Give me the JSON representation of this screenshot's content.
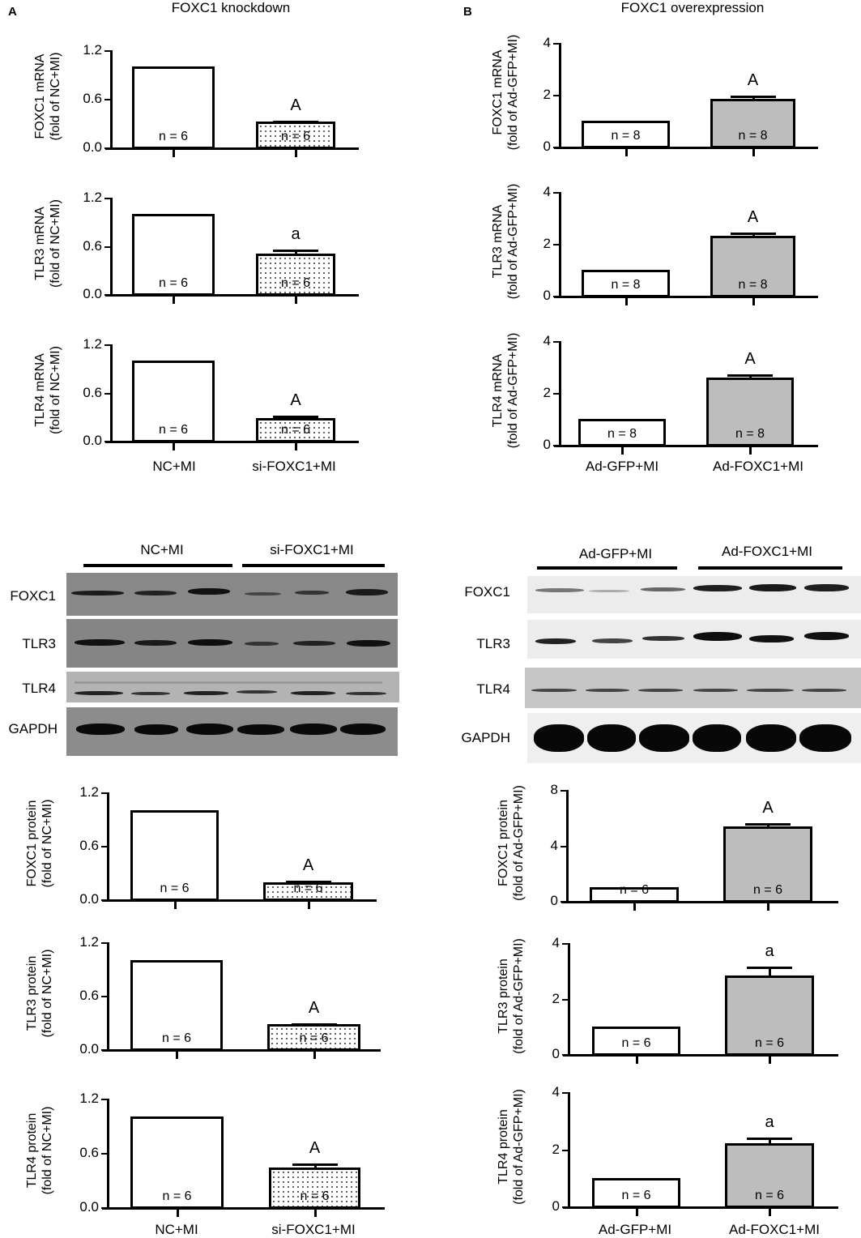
{
  "panels": {
    "A": {
      "letter": "A",
      "title": "FOXC1 knockdown",
      "categories": [
        "NC+MI",
        "si-FOXC1+MI"
      ]
    },
    "B": {
      "letter": "B",
      "title": "FOXC1 overexpression",
      "categories": [
        "Ad-GFP+MI",
        "Ad-FOXC1+MI"
      ]
    }
  },
  "blots": {
    "left": {
      "groups": [
        "NC+MI",
        "si-FOXC1+MI"
      ],
      "rows": [
        "FOXC1",
        "TLR3",
        "TLR4",
        "GAPDH"
      ]
    },
    "right": {
      "groups": [
        "Ad-GFP+MI",
        "Ad-FOXC1+MI"
      ],
      "rows": [
        "FOXC1",
        "TLR3",
        "TLR4",
        "GAPDH"
      ]
    }
  },
  "chart_data": [
    {
      "id": "A1",
      "type": "bar",
      "ylabel": "FOXC1 mRNA",
      "ylabel2": "(fold of NC+MI)",
      "yticks": [
        "0.0",
        "0.6",
        "1.2"
      ],
      "ylim": [
        0,
        1.2
      ],
      "categories": [
        "NC+MI",
        "si-FOXC1+MI"
      ],
      "values": [
        1.0,
        0.32
      ],
      "errors": [
        0,
        0.01
      ],
      "n": [
        "n = 6",
        "n = 6"
      ],
      "sig": [
        "",
        "A"
      ],
      "fills": [
        "white",
        "dotted"
      ]
    },
    {
      "id": "A2",
      "type": "bar",
      "ylabel": "TLR3 mRNA",
      "ylabel2": "(fold of NC+MI)",
      "yticks": [
        "0.0",
        "0.6",
        "1.2"
      ],
      "ylim": [
        0,
        1.2
      ],
      "categories": [
        "NC+MI",
        "si-FOXC1+MI"
      ],
      "values": [
        1.0,
        0.5
      ],
      "errors": [
        0,
        0.05
      ],
      "n": [
        "n = 6",
        "n = 6"
      ],
      "sig": [
        "",
        "a"
      ],
      "fills": [
        "white",
        "dotted"
      ]
    },
    {
      "id": "A3",
      "type": "bar",
      "ylabel": "TLR4 mRNA",
      "ylabel2": "(fold of NC+MI)",
      "yticks": [
        "0.0",
        "0.6",
        "1.2"
      ],
      "ylim": [
        0,
        1.2
      ],
      "categories": [
        "NC+MI",
        "si-FOXC1+MI"
      ],
      "values": [
        1.0,
        0.28
      ],
      "errors": [
        0,
        0.03
      ],
      "n": [
        "n = 6",
        "n = 6"
      ],
      "sig": [
        "",
        "A"
      ],
      "fills": [
        "white",
        "dotted"
      ]
    },
    {
      "id": "B1",
      "type": "bar",
      "ylabel": "FOXC1 mRNA",
      "ylabel2": "(fold of Ad-GFP+MI)",
      "yticks": [
        "0",
        "2",
        "4"
      ],
      "ylim": [
        0,
        4
      ],
      "categories": [
        "Ad-GFP+MI",
        "Ad-FOXC1+MI"
      ],
      "values": [
        1.0,
        1.83
      ],
      "errors": [
        0,
        0.15
      ],
      "n": [
        "n = 8",
        "n = 8"
      ],
      "sig": [
        "",
        "A"
      ],
      "fills": [
        "white",
        "gray"
      ]
    },
    {
      "id": "B2",
      "type": "bar",
      "ylabel": "TLR3 mRNA",
      "ylabel2": "(fold of Ad-GFP+MI)",
      "yticks": [
        "0",
        "2",
        "4"
      ],
      "ylim": [
        0,
        4
      ],
      "categories": [
        "Ad-GFP+MI",
        "Ad-FOXC1+MI"
      ],
      "values": [
        1.0,
        2.3
      ],
      "errors": [
        0,
        0.15
      ],
      "n": [
        "n = 8",
        "n = 8"
      ],
      "sig": [
        "",
        "A"
      ],
      "fills": [
        "white",
        "gray"
      ]
    },
    {
      "id": "B3",
      "type": "bar",
      "ylabel": "TLR4 mRNA",
      "ylabel2": "(fold of Ad-GFP+MI)",
      "yticks": [
        "0",
        "2",
        "4"
      ],
      "ylim": [
        0,
        4
      ],
      "categories": [
        "Ad-GFP+MI",
        "Ad-FOXC1+MI"
      ],
      "values": [
        1.0,
        2.6
      ],
      "errors": [
        0,
        0.12
      ],
      "n": [
        "n = 8",
        "n = 8"
      ],
      "sig": [
        "",
        "A"
      ],
      "fills": [
        "white",
        "gray"
      ]
    },
    {
      "id": "A4",
      "type": "bar",
      "ylabel": "FOXC1 protein",
      "ylabel2": "(fold of NC+MI)",
      "yticks": [
        "0.0",
        "0.6",
        "1.2"
      ],
      "ylim": [
        0,
        1.2
      ],
      "categories": [
        "NC+MI",
        "si-FOXC1+MI"
      ],
      "values": [
        1.0,
        0.19
      ],
      "errors": [
        0,
        0.02
      ],
      "n": [
        "n = 6",
        "n = 6"
      ],
      "sig": [
        "",
        "A"
      ],
      "fills": [
        "white",
        "dotted"
      ]
    },
    {
      "id": "A5",
      "type": "bar",
      "ylabel": "TLR3 protein",
      "ylabel2": "(fold of NC+MI)",
      "yticks": [
        "0.0",
        "0.6",
        "1.2"
      ],
      "ylim": [
        0,
        1.2
      ],
      "categories": [
        "NC+MI",
        "si-FOXC1+MI"
      ],
      "values": [
        1.0,
        0.28
      ],
      "errors": [
        0,
        0.01
      ],
      "n": [
        "n = 6",
        "n = 6"
      ],
      "sig": [
        "",
        "A"
      ],
      "fills": [
        "white",
        "dotted"
      ]
    },
    {
      "id": "A6",
      "type": "bar",
      "ylabel": "TLR4 protein",
      "ylabel2": "(fold of NC+MI)",
      "yticks": [
        "0.0",
        "0.6",
        "1.2"
      ],
      "ylim": [
        0,
        1.2
      ],
      "categories": [
        "NC+MI",
        "si-FOXC1+MI"
      ],
      "values": [
        1.0,
        0.44
      ],
      "errors": [
        0,
        0.04
      ],
      "n": [
        "n = 6",
        "n = 6"
      ],
      "sig": [
        "",
        "A"
      ],
      "fills": [
        "white",
        "dotted"
      ]
    },
    {
      "id": "B4",
      "type": "bar",
      "ylabel": "FOXC1 protein",
      "ylabel2": "(fold of Ad-GFP+MI)",
      "yticks": [
        "0",
        "4",
        "8"
      ],
      "ylim": [
        0,
        8
      ],
      "categories": [
        "Ad-GFP+MI",
        "Ad-FOXC1+MI"
      ],
      "values": [
        1.0,
        5.35
      ],
      "errors": [
        0,
        0.25
      ],
      "n": [
        "n = 6",
        "n = 6"
      ],
      "sig": [
        "",
        "A"
      ],
      "fills": [
        "white",
        "gray"
      ]
    },
    {
      "id": "B5",
      "type": "bar",
      "ylabel": "TLR3 protein",
      "ylabel2": "(fold of Ad-GFP+MI)",
      "yticks": [
        "0",
        "2",
        "4"
      ],
      "ylim": [
        0,
        4
      ],
      "categories": [
        "Ad-GFP+MI",
        "Ad-FOXC1+MI"
      ],
      "values": [
        1.0,
        2.82
      ],
      "errors": [
        0,
        0.32
      ],
      "n": [
        "n = 6",
        "n = 6"
      ],
      "sig": [
        "",
        "a"
      ],
      "fills": [
        "white",
        "gray"
      ]
    },
    {
      "id": "B6",
      "type": "bar",
      "ylabel": "TLR4 protein",
      "ylabel2": "(fold of Ad-GFP+MI)",
      "yticks": [
        "0",
        "2",
        "4"
      ],
      "ylim": [
        0,
        4
      ],
      "categories": [
        "Ad-GFP+MI",
        "Ad-FOXC1+MI"
      ],
      "values": [
        1.0,
        2.2
      ],
      "errors": [
        0,
        0.2
      ],
      "n": [
        "n = 6",
        "n = 6"
      ],
      "sig": [
        "",
        "a"
      ],
      "fills": [
        "white",
        "gray"
      ]
    }
  ],
  "colors": {
    "gray_bar": "#bdbdbd",
    "blot_left_bg": "#8a8a8a",
    "blot_right_bg": "#e8e8e8"
  }
}
